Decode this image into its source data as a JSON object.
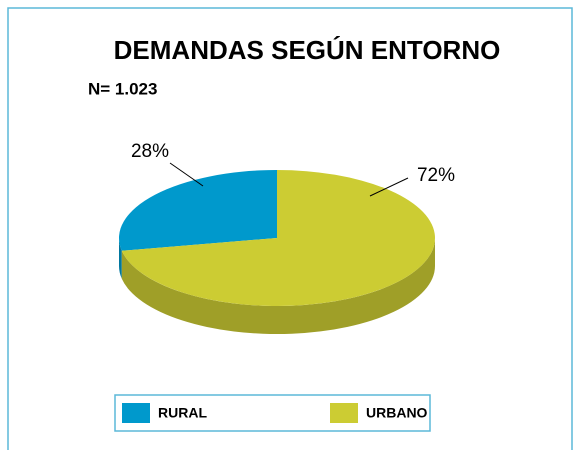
{
  "chart_data": {
    "type": "pie",
    "title": "DEMANDAS SEGÚN ENTORNO",
    "subtitle": "N= 1.023",
    "categories": [
      "RURAL",
      "URBANO"
    ],
    "values": [
      28,
      72
    ],
    "value_labels": [
      "28%",
      "72%"
    ],
    "colors": [
      "#0099cc",
      "#cccc33"
    ],
    "legend": "bottom"
  }
}
